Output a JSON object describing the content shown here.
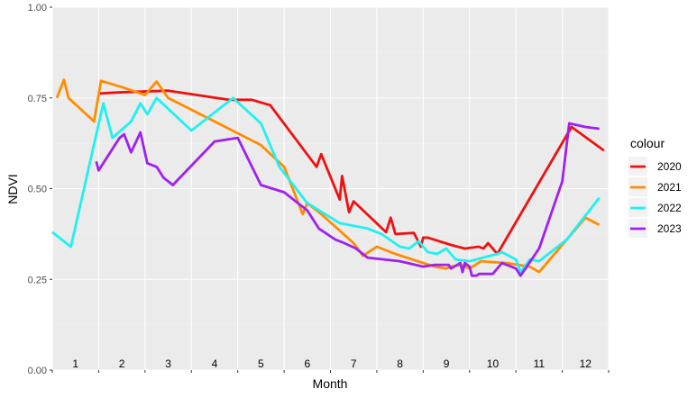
{
  "chart_data": {
    "type": "line",
    "title": "",
    "xlabel": "Month",
    "ylabel": "NDVI",
    "xlim": [
      0.5,
      12.5
    ],
    "ylim": [
      0,
      1
    ],
    "y_ticks": [
      "0.00",
      "0.25",
      "0.50",
      "0.75",
      "1.00"
    ],
    "y_tick_values": [
      0,
      0.25,
      0.5,
      0.75,
      1.0
    ],
    "month_labels": [
      "1",
      "2",
      "3",
      "4",
      "5",
      "6",
      "7",
      "8",
      "9",
      "10",
      "11",
      "12"
    ],
    "grid": true,
    "background": "#ebebeb",
    "legend": {
      "title": "colour",
      "placement": "right"
    },
    "series": [
      {
        "name": "2020",
        "color": "#ee1111",
        "x": [
          1.5,
          1.9,
          3.0,
          4.3,
          4.8,
          5.2,
          6.2,
          6.3,
          6.7,
          6.75,
          6.9,
          7.0,
          7.7,
          7.8,
          7.9,
          8.3,
          8.45,
          8.5,
          8.6,
          9.1,
          9.4,
          9.7,
          9.8,
          9.9,
          10.1,
          11.7,
          12.4
        ],
        "y": [
          0.762,
          0.765,
          0.77,
          0.745,
          0.745,
          0.73,
          0.56,
          0.595,
          0.47,
          0.535,
          0.435,
          0.465,
          0.38,
          0.42,
          0.375,
          0.378,
          0.34,
          0.365,
          0.365,
          0.345,
          0.335,
          0.34,
          0.335,
          0.35,
          0.32,
          0.67,
          0.605
        ]
      },
      {
        "name": "2021",
        "color": "#ff8c00",
        "x": [
          0.6,
          0.75,
          0.85,
          1.4,
          1.55,
          2.0,
          2.5,
          2.75,
          3.0,
          4.0,
          5.0,
          5.5,
          5.9,
          6.0,
          6.3,
          7.0,
          7.2,
          7.5,
          7.6,
          7.9,
          8.5,
          8.75,
          9.0,
          9.1,
          9.3,
          9.5,
          9.75,
          10.3,
          10.8,
          11.0,
          12.0,
          12.3
        ],
        "y": [
          0.75,
          0.8,
          0.75,
          0.685,
          0.797,
          0.78,
          0.758,
          0.795,
          0.75,
          0.685,
          0.62,
          0.56,
          0.43,
          0.46,
          0.43,
          0.35,
          0.315,
          0.34,
          0.335,
          0.32,
          0.295,
          0.285,
          0.28,
          0.285,
          0.29,
          0.28,
          0.3,
          0.295,
          0.285,
          0.27,
          0.42,
          0.4
        ]
      },
      {
        "name": "2022",
        "color": "#1ff1f1",
        "x": [
          0.5,
          0.9,
          1.6,
          1.8,
          2.2,
          2.4,
          2.55,
          2.75,
          3.5,
          4.4,
          5.0,
          5.4,
          6.0,
          6.7,
          7.3,
          7.6,
          8.0,
          8.2,
          8.4,
          8.6,
          8.8,
          9.0,
          9.2,
          9.5,
          10.1,
          10.2,
          10.5,
          10.6,
          10.8,
          11.0,
          11.6,
          12.3
        ],
        "y": [
          0.38,
          0.34,
          0.735,
          0.64,
          0.685,
          0.735,
          0.705,
          0.75,
          0.66,
          0.75,
          0.68,
          0.56,
          0.46,
          0.405,
          0.39,
          0.375,
          0.34,
          0.335,
          0.355,
          0.325,
          0.32,
          0.335,
          0.305,
          0.3,
          0.32,
          0.325,
          0.305,
          0.27,
          0.305,
          0.3,
          0.36,
          0.475
        ]
      },
      {
        "name": "2023",
        "color": "#a020f0",
        "x": [
          1.45,
          1.5,
          1.95,
          2.05,
          2.2,
          2.4,
          2.55,
          2.75,
          2.9,
          3.1,
          4.0,
          4.5,
          5.0,
          5.5,
          6.0,
          6.25,
          6.6,
          6.8,
          7.05,
          7.1,
          7.3,
          8.0,
          8.5,
          8.75,
          9.05,
          9.1,
          9.3,
          9.35,
          9.4,
          9.5,
          9.55,
          9.65,
          9.7,
          10.0,
          10.2,
          10.5,
          10.6,
          11.0,
          11.5,
          11.65,
          12.0,
          12.3
        ],
        "y": [
          0.575,
          0.55,
          0.64,
          0.65,
          0.6,
          0.655,
          0.57,
          0.56,
          0.53,
          0.51,
          0.63,
          0.64,
          0.51,
          0.49,
          0.44,
          0.39,
          0.36,
          0.35,
          0.335,
          0.33,
          0.31,
          0.3,
          0.285,
          0.29,
          0.29,
          0.28,
          0.295,
          0.27,
          0.295,
          0.285,
          0.26,
          0.26,
          0.265,
          0.265,
          0.295,
          0.28,
          0.26,
          0.335,
          0.52,
          0.68,
          0.67,
          0.665
        ]
      }
    ]
  }
}
